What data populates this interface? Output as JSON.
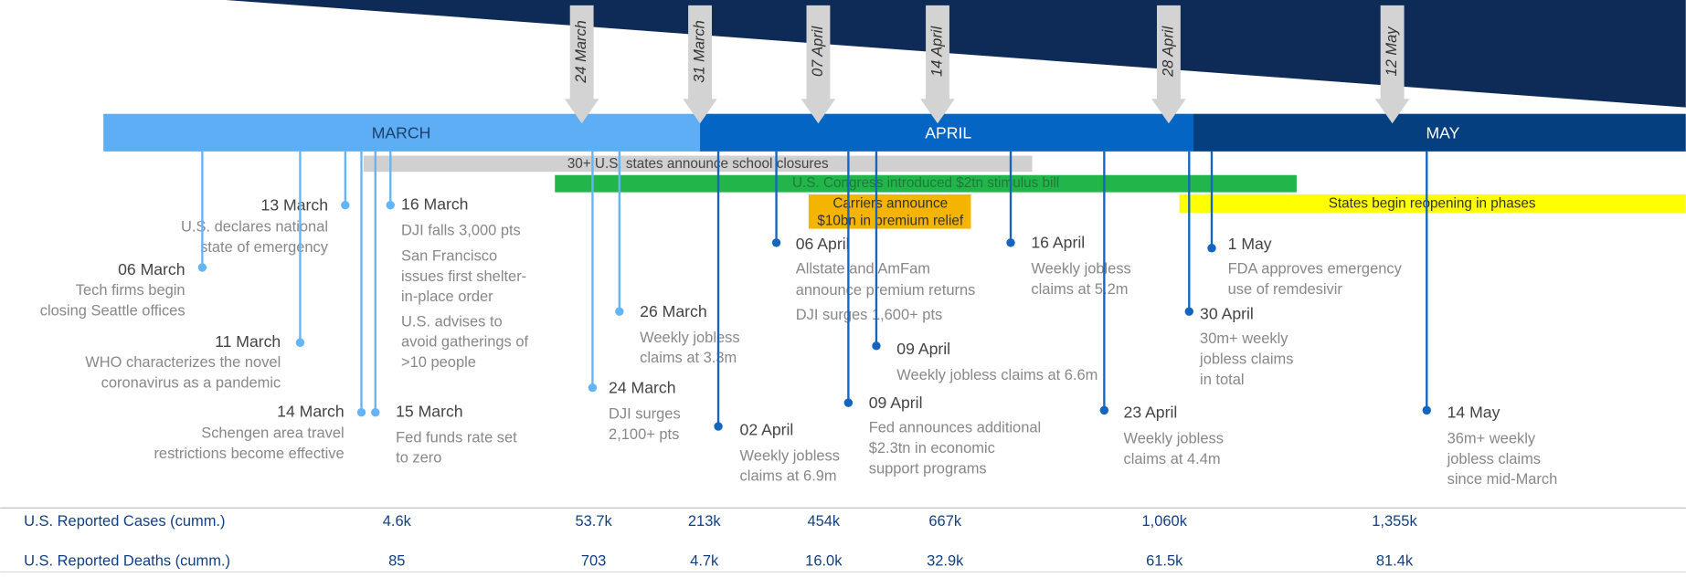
{
  "months": [
    "MARCH",
    "APRIL",
    "MAY"
  ],
  "date_arrows": [
    "24 March",
    "31 March",
    "07 April",
    "14 April",
    "28 April",
    "12 May"
  ],
  "bars": [
    "30+ U.S. states announce school closures",
    "U.S. Congress introduced $2tn stimulus bill",
    [
      "Carriers announce",
      "$10bn in premium relief"
    ],
    "States begin reopening in phases"
  ],
  "events": [
    {
      "date": "13 March",
      "lines": [
        "U.S. declares national",
        "state of emergency"
      ]
    },
    {
      "date": "06 March",
      "lines": [
        "Tech firms begin",
        "closing Seattle offices"
      ]
    },
    {
      "date": "11 March",
      "lines": [
        "WHO characterizes the novel",
        "coronavirus as a pandemic"
      ]
    },
    {
      "date": "14 March",
      "lines": [
        "Schengen area travel",
        "restrictions become effective"
      ]
    },
    {
      "date": "15 March",
      "lines": [
        "Fed funds rate set",
        "to zero"
      ]
    },
    {
      "date": "16 March",
      "lines": [
        "DJI falls 3,000 pts",
        "San Francisco",
        "issues first shelter-",
        "in-place order",
        "U.S. advises to",
        "avoid gatherings of",
        ">10 people"
      ]
    },
    {
      "date": "26 March",
      "lines": [
        "Weekly jobless",
        "claims at 3.3m"
      ]
    },
    {
      "date": "24 March",
      "lines": [
        "DJI surges",
        "2,100+ pts"
      ]
    },
    {
      "date": "02 April",
      "lines": [
        "Weekly jobless",
        "claims at 6.9m"
      ]
    },
    {
      "date": "06 April",
      "lines": [
        "Allstate and AmFam",
        "announce premium returns",
        "DJI surges 1,600+ pts"
      ]
    },
    {
      "date": "09 April",
      "lines": [
        "Weekly jobless claims at 6.6m"
      ]
    },
    {
      "date": "09 April",
      "lines": [
        "Fed announces additional",
        "$2.3tn in economic",
        "support programs"
      ]
    },
    {
      "date": "16 April",
      "lines": [
        "Weekly jobless",
        "claims at 5.2m"
      ]
    },
    {
      "date": "23 April",
      "lines": [
        "Weekly jobless",
        "claims at 4.4m"
      ]
    },
    {
      "date": "30 April",
      "lines": [
        "30m+ weekly",
        "jobless claims",
        "in total"
      ]
    },
    {
      "date": "1 May",
      "lines": [
        "FDA approves emergency",
        "use of remdesivir"
      ]
    },
    {
      "date": "14 May",
      "lines": [
        "36m+ weekly",
        "jobless claims",
        "since mid-March"
      ]
    }
  ],
  "table": {
    "rows": [
      {
        "label": "U.S. Reported Cases (cumm.)",
        "values": [
          "4.6k",
          "53.7k",
          "213k",
          "454k",
          "667k",
          "1,060k",
          "1,355k"
        ]
      },
      {
        "label": "U.S. Reported Deaths (cumm.)",
        "values": [
          "85",
          "703",
          "4.7k",
          "16.0k",
          "32.9k",
          "61.5k",
          "81.4k"
        ]
      }
    ]
  }
}
